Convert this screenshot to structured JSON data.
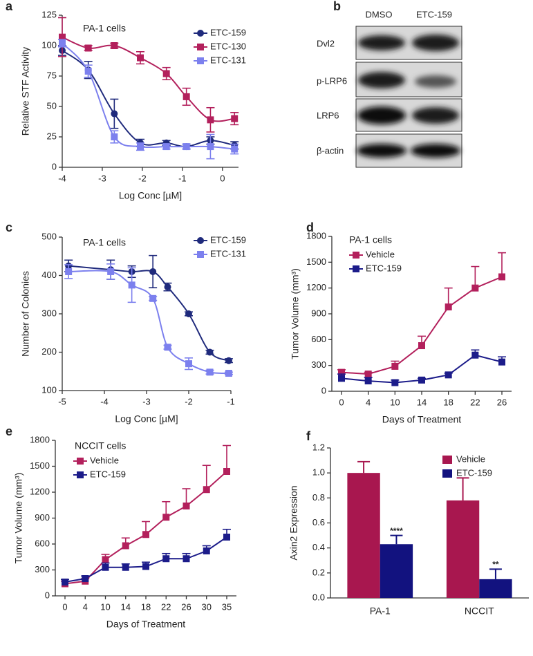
{
  "chart_data": [
    {
      "type": "scatter",
      "panel": "a",
      "annotation": "PA-1 cells",
      "x_label": "Log Conc [µM]",
      "y_label": "Relative STF Activity",
      "x": [
        -4,
        -3.35,
        -2.7,
        -2.05,
        -1.4,
        -0.9,
        -0.3,
        0.3
      ],
      "xlim": [
        -4,
        0.4
      ],
      "xticks": [
        -4,
        -3,
        -2,
        -1,
        0
      ],
      "ylim": [
        0,
        125
      ],
      "yticks": [
        0,
        25,
        50,
        75,
        100,
        125
      ],
      "series": [
        {
          "name": "ETC-159",
          "color": "#1f2a7c",
          "marker": "circle",
          "values": [
            96,
            80,
            44,
            20,
            20,
            17,
            22,
            18
          ],
          "errors": [
            4,
            7,
            12,
            3,
            2,
            2,
            3,
            3
          ]
        },
        {
          "name": "ETC-130",
          "color": "#b3205c",
          "marker": "square",
          "values": [
            107,
            98,
            100,
            90,
            77,
            58,
            39,
            40
          ],
          "errors": [
            16,
            2,
            2,
            5,
            5,
            7,
            10,
            5
          ]
        },
        {
          "name": "ETC-131",
          "color": "#7c80ee",
          "marker": "square",
          "values": [
            102,
            79,
            25,
            17,
            17,
            17,
            17,
            15
          ],
          "errors": [
            3,
            5,
            5,
            3,
            2,
            2,
            10,
            4
          ]
        }
      ]
    },
    {
      "type": "scatter",
      "panel": "c",
      "annotation": "PA-1 cells",
      "x_label": "Log Conc [µM]",
      "y_label": "Number of Colonies",
      "x": [
        -4.85,
        -3.85,
        -3.35,
        -2.85,
        -2.5,
        -2.0,
        -1.5,
        -1.05
      ],
      "xlim": [
        -5,
        -1
      ],
      "xticks": [
        -5,
        -4,
        -3,
        -2,
        -1
      ],
      "ylim": [
        100,
        500
      ],
      "yticks": [
        100,
        200,
        300,
        400,
        500
      ],
      "series": [
        {
          "name": "ETC-159",
          "color": "#1f2a7c",
          "marker": "circle",
          "values": [
            425,
            415,
            410,
            410,
            370,
            300,
            200,
            178
          ],
          "errors": [
            15,
            25,
            15,
            42,
            10,
            5,
            5,
            5
          ]
        },
        {
          "name": "ETC-131",
          "color": "#7c80ee",
          "marker": "square",
          "values": [
            410,
            410,
            375,
            340,
            213,
            170,
            148,
            145
          ],
          "errors": [
            18,
            20,
            45,
            5,
            5,
            15,
            5,
            3
          ]
        }
      ]
    },
    {
      "type": "line",
      "panel": "d",
      "annotation": "PA-1 cells",
      "x_label": "Days of Treatment",
      "y_label": "Tumor Volume (mm³)",
      "categories": [
        "0",
        "4",
        "10",
        "14",
        "18",
        "22",
        "26"
      ],
      "ylim": [
        0,
        1800
      ],
      "yticks": [
        0,
        300,
        600,
        900,
        1200,
        1500,
        1800
      ],
      "series": [
        {
          "name": "Vehicle",
          "color": "#b3205c",
          "marker": "square",
          "values": [
            220,
            200,
            290,
            530,
            980,
            1200,
            1330
          ],
          "errors": [
            30,
            20,
            60,
            110,
            220,
            250,
            280
          ]
        },
        {
          "name": "ETC-159",
          "color": "#1c1c8a",
          "marker": "square",
          "values": [
            150,
            120,
            100,
            130,
            190,
            420,
            340
          ],
          "errors": [
            50,
            40,
            30,
            20,
            20,
            60,
            60
          ]
        }
      ]
    },
    {
      "type": "line",
      "panel": "e",
      "annotation": "NCCIT cells",
      "x_label": "Days of Treatment",
      "y_label": "Tumor Volume (mm³)",
      "categories": [
        "0",
        "4",
        "10",
        "14",
        "18",
        "22",
        "26",
        "30",
        "35"
      ],
      "ylim": [
        0,
        1800
      ],
      "yticks": [
        0,
        300,
        600,
        900,
        1200,
        1500,
        1800
      ],
      "series": [
        {
          "name": "Vehicle",
          "color": "#b3205c",
          "marker": "square",
          "values": [
            140,
            170,
            420,
            580,
            710,
            910,
            1040,
            1230,
            1440
          ],
          "errors": [
            30,
            30,
            60,
            90,
            150,
            180,
            200,
            280,
            300
          ]
        },
        {
          "name": "ETC-159",
          "color": "#1c1c8a",
          "marker": "square",
          "values": [
            160,
            200,
            330,
            330,
            340,
            430,
            430,
            520,
            680
          ],
          "errors": [
            30,
            30,
            50,
            40,
            50,
            60,
            60,
            60,
            90
          ]
        }
      ]
    },
    {
      "type": "bar",
      "panel": "f",
      "y_label": "Axin2 Expression",
      "categories": [
        "PA-1",
        "NCCIT"
      ],
      "ylim": [
        0,
        1.2
      ],
      "yticks": [
        {
          "value": 0,
          "label": "0.0"
        },
        0.2,
        0.4,
        0.6,
        0.8,
        {
          "value": 1,
          "label": "1.0"
        },
        1.2
      ],
      "series": [
        {
          "name": "Vehicle",
          "color": "#a8174f",
          "values": [
            1.0,
            0.78
          ],
          "errors": [
            0.09,
            0.18
          ]
        },
        {
          "name": "ETC-159",
          "color": "#12127f",
          "values": [
            0.43,
            0.15
          ],
          "errors": [
            0.07,
            0.08
          ],
          "stars": [
            "****",
            "**"
          ]
        }
      ]
    }
  ],
  "blot": {
    "panel": "b",
    "columns": [
      "DMSO",
      "ETC-159"
    ],
    "rows": [
      "Dvl2",
      "p-LRP6",
      "LRP6",
      "β-actin"
    ]
  }
}
